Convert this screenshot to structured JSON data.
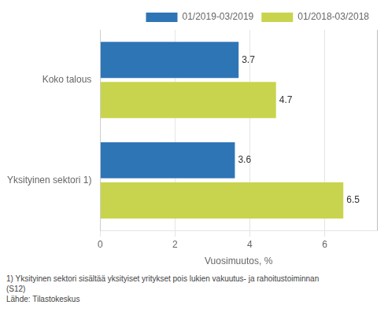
{
  "chart_data": {
    "type": "bar",
    "orientation": "horizontal",
    "categories": [
      "Yksityinen sektori 1)",
      "Koko talous"
    ],
    "series": [
      {
        "name": "01/2019-03/2019",
        "color": "#2E75B6",
        "values": [
          3.6,
          3.7
        ]
      },
      {
        "name": "01/2018-03/2018",
        "color": "#C8D44E",
        "values": [
          6.5,
          4.7
        ]
      }
    ],
    "xlabel": "Vuosimuutos, %",
    "xlim": [
      0,
      7.4
    ],
    "xticks": [
      0,
      2,
      4,
      6
    ],
    "grid": true,
    "legend": "upper right",
    "data_labels": true,
    "annotations": [
      "1) Yksityinen sektori sisältää yksityiset yritykset pois lukien vakuutus- ja rahoitustoiminnan",
      "(S12)",
      "Lähde: Tilastokeskus"
    ]
  }
}
